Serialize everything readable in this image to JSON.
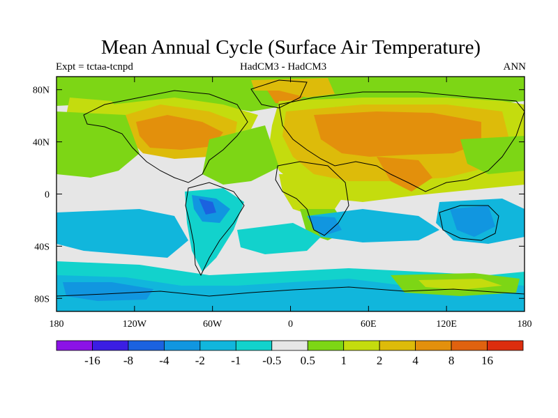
{
  "title": "Mean Annual Cycle (Surface Air Temperature)",
  "subtitle_left": "Expt = tctaa-tcnpd",
  "subtitle_center": "HadCM3 - HadCM3",
  "subtitle_right": "ANN",
  "lat_ticks": [
    {
      "value": 80,
      "label": "80N"
    },
    {
      "value": 40,
      "label": "40N"
    },
    {
      "value": 0,
      "label": "0"
    },
    {
      "value": -40,
      "label": "40S"
    },
    {
      "value": -80,
      "label": "80S"
    }
  ],
  "lon_ticks": [
    {
      "value": -180,
      "label": "180"
    },
    {
      "value": -120,
      "label": "120W"
    },
    {
      "value": -60,
      "label": "60W"
    },
    {
      "value": 0,
      "label": "0"
    },
    {
      "value": 60,
      "label": "60E"
    },
    {
      "value": 120,
      "label": "120E"
    },
    {
      "value": 180,
      "label": "180"
    }
  ],
  "colorbar": {
    "colors": [
      "#8b13e6",
      "#3b1ee3",
      "#1b62e0",
      "#1196e0",
      "#11b6dc",
      "#12d2cc",
      "#e6e6e6",
      "#7dd615",
      "#c4dc0e",
      "#ddbb0a",
      "#e3900c",
      "#e0620f",
      "#dc2d0e"
    ],
    "labels": [
      "-16",
      "-8",
      "-4",
      "-2",
      "-1",
      "-0.5",
      "0.5",
      "1",
      "2",
      "4",
      "8",
      "16"
    ]
  },
  "map_colors": {
    "ocean_neutral": "#e6e6e6",
    "light_warm": "#7dd615",
    "warm": "#c4dc0e",
    "hot": "#ddbb0a",
    "hotter": "#e3900c",
    "light_cool": "#12d2cc",
    "cool": "#11b6dc",
    "cold": "#1196e0",
    "colder": "#1b62e0",
    "coast": "#000000"
  }
}
